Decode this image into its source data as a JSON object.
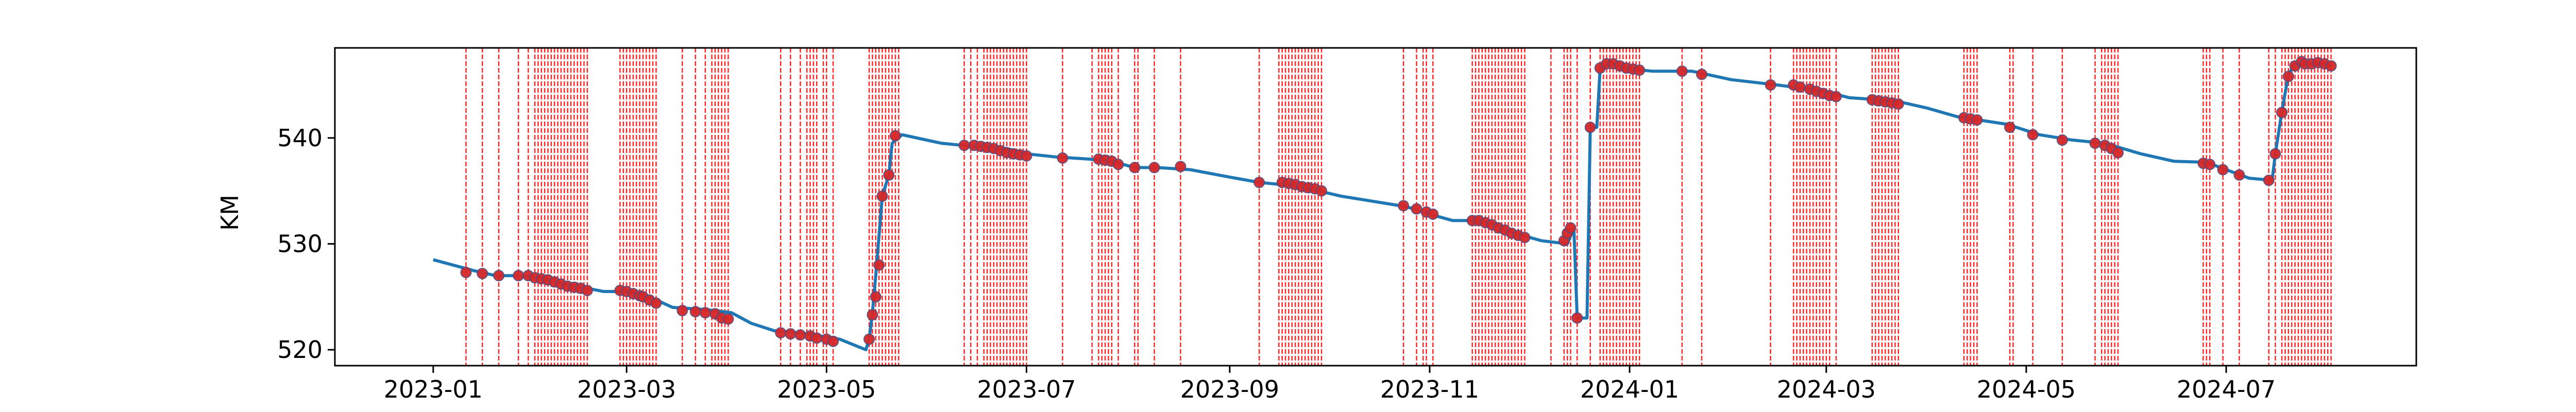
{
  "chart_data": {
    "type": "line",
    "title": "",
    "xlabel": "",
    "ylabel": "KM",
    "xlim": [
      "2022-12-02",
      "2024-08-28"
    ],
    "ylim": [
      518.5,
      548.5
    ],
    "grid": false,
    "x_ticks": [
      "2023-01",
      "2023-03",
      "2023-05",
      "2023-07",
      "2023-09",
      "2023-11",
      "2024-01",
      "2024-03",
      "2024-05",
      "2024-07"
    ],
    "y_ticks": [
      520,
      530,
      540
    ],
    "colors": {
      "line": "#1f77b4",
      "marker": "#d62728",
      "vline": "#ff0000"
    },
    "series": [
      {
        "values": [
          [
            "2023-01-01",
            528.5
          ],
          [
            "2023-01-13",
            527.5
          ],
          [
            "2023-01-20",
            527.0
          ],
          [
            "2023-01-27",
            527.0
          ],
          [
            "2023-02-03",
            526.8
          ],
          [
            "2023-02-10",
            526.2
          ],
          [
            "2023-02-17",
            525.8
          ],
          [
            "2023-02-22",
            525.5
          ],
          [
            "2023-03-01",
            525.5
          ],
          [
            "2023-03-08",
            525.0
          ],
          [
            "2023-03-15",
            524.0
          ],
          [
            "2023-03-25",
            523.8
          ],
          [
            "2023-04-02",
            523.5
          ],
          [
            "2023-04-08",
            522.5
          ],
          [
            "2023-04-15",
            521.8
          ],
          [
            "2023-04-25",
            521.5
          ],
          [
            "2023-05-05",
            521.0
          ],
          [
            "2023-05-13",
            520.0
          ],
          [
            "2023-05-14",
            521.0
          ],
          [
            "2023-05-15",
            523.5
          ],
          [
            "2023-05-16",
            527.0
          ],
          [
            "2023-05-18",
            534.5
          ],
          [
            "2023-05-20",
            536.5
          ],
          [
            "2023-05-21",
            539.5
          ],
          [
            "2023-05-24",
            540.3
          ],
          [
            "2023-06-05",
            539.5
          ],
          [
            "2023-06-15",
            539.2
          ],
          [
            "2023-06-25",
            539.0
          ],
          [
            "2023-07-01",
            538.5
          ],
          [
            "2023-07-10",
            538.2
          ],
          [
            "2023-07-20",
            538.0
          ],
          [
            "2023-07-27",
            537.8
          ],
          [
            "2023-08-03",
            537.2
          ],
          [
            "2023-08-10",
            537.2
          ],
          [
            "2023-08-20",
            537.0
          ],
          [
            "2023-09-01",
            536.3
          ],
          [
            "2023-09-10",
            535.8
          ],
          [
            "2023-09-20",
            535.5
          ],
          [
            "2023-09-28",
            535.0
          ],
          [
            "2023-10-05",
            534.5
          ],
          [
            "2023-10-15",
            534.0
          ],
          [
            "2023-10-25",
            533.5
          ],
          [
            "2023-11-01",
            532.8
          ],
          [
            "2023-11-08",
            532.2
          ],
          [
            "2023-11-15",
            532.2
          ],
          [
            "2023-11-20",
            532.0
          ],
          [
            "2023-11-27",
            531.0
          ],
          [
            "2023-12-05",
            530.3
          ],
          [
            "2023-12-13",
            530.0
          ],
          [
            "2023-12-15",
            531.5
          ],
          [
            "2023-12-16",
            523.0
          ],
          [
            "2023-12-19",
            523.0
          ],
          [
            "2023-12-20",
            541.0
          ],
          [
            "2023-12-22",
            541.0
          ],
          [
            "2023-12-23",
            546.5
          ],
          [
            "2023-12-26",
            547.0
          ],
          [
            "2024-01-01",
            546.5
          ],
          [
            "2024-01-08",
            546.3
          ],
          [
            "2024-01-20",
            546.3
          ],
          [
            "2024-02-01",
            545.5
          ],
          [
            "2024-02-15",
            545.0
          ],
          [
            "2024-02-28",
            544.5
          ],
          [
            "2024-03-08",
            543.8
          ],
          [
            "2024-03-22",
            543.5
          ],
          [
            "2024-04-01",
            542.8
          ],
          [
            "2024-04-10",
            542.0
          ],
          [
            "2024-04-25",
            541.3
          ],
          [
            "2024-05-05",
            540.3
          ],
          [
            "2024-05-15",
            539.8
          ],
          [
            "2024-05-25",
            539.5
          ],
          [
            "2024-06-05",
            538.5
          ],
          [
            "2024-06-15",
            537.8
          ],
          [
            "2024-06-25",
            537.7
          ],
          [
            "2024-07-01",
            537.0
          ],
          [
            "2024-07-08",
            536.2
          ],
          [
            "2024-07-15",
            536.0
          ],
          [
            "2024-07-16",
            538.5
          ],
          [
            "2024-07-18",
            542.5
          ],
          [
            "2024-07-20",
            546.0
          ],
          [
            "2024-07-22",
            547.0
          ],
          [
            "2024-07-28",
            547.0
          ],
          [
            "2024-08-02",
            546.8
          ]
        ]
      }
    ],
    "markers": [
      [
        "2023-01-11",
        527.3
      ],
      [
        "2023-01-16",
        527.2
      ],
      [
        "2023-01-21",
        527.0
      ],
      [
        "2023-01-27",
        527.0
      ],
      [
        "2023-01-30",
        527.0
      ],
      [
        "2023-02-01",
        526.8
      ],
      [
        "2023-02-03",
        526.7
      ],
      [
        "2023-02-05",
        526.6
      ],
      [
        "2023-02-07",
        526.4
      ],
      [
        "2023-02-09",
        526.2
      ],
      [
        "2023-02-11",
        526.0
      ],
      [
        "2023-02-13",
        525.9
      ],
      [
        "2023-02-15",
        525.8
      ],
      [
        "2023-02-17",
        525.6
      ],
      [
        "2023-02-27",
        525.6
      ],
      [
        "2023-03-01",
        525.5
      ],
      [
        "2023-03-03",
        525.3
      ],
      [
        "2023-03-05",
        525.1
      ],
      [
        "2023-03-06",
        525.0
      ],
      [
        "2023-03-08",
        524.7
      ],
      [
        "2023-03-10",
        524.4
      ],
      [
        "2023-03-18",
        523.7
      ],
      [
        "2023-03-22",
        523.6
      ],
      [
        "2023-03-25",
        523.5
      ],
      [
        "2023-03-28",
        523.4
      ],
      [
        "2023-03-30",
        523.0
      ],
      [
        "2023-04-01",
        522.9
      ],
      [
        "2023-04-17",
        521.6
      ],
      [
        "2023-04-20",
        521.5
      ],
      [
        "2023-04-23",
        521.4
      ],
      [
        "2023-04-26",
        521.3
      ],
      [
        "2023-04-28",
        521.1
      ],
      [
        "2023-05-01",
        521.0
      ],
      [
        "2023-05-03",
        520.8
      ],
      [
        "2023-05-14",
        521.0
      ],
      [
        "2023-05-15",
        523.3
      ],
      [
        "2023-05-16",
        525.0
      ],
      [
        "2023-05-17",
        528.0
      ],
      [
        "2023-05-18",
        534.5
      ],
      [
        "2023-05-20",
        536.5
      ],
      [
        "2023-05-22",
        540.2
      ],
      [
        "2023-06-12",
        539.3
      ],
      [
        "2023-06-15",
        539.3
      ],
      [
        "2023-06-17",
        539.2
      ],
      [
        "2023-06-19",
        539.1
      ],
      [
        "2023-06-21",
        539.0
      ],
      [
        "2023-06-23",
        538.8
      ],
      [
        "2023-06-25",
        538.6
      ],
      [
        "2023-06-27",
        538.5
      ],
      [
        "2023-06-29",
        538.4
      ],
      [
        "2023-07-01",
        538.3
      ],
      [
        "2023-07-12",
        538.1
      ],
      [
        "2023-07-23",
        538.0
      ],
      [
        "2023-07-25",
        537.9
      ],
      [
        "2023-07-27",
        537.8
      ],
      [
        "2023-07-29",
        537.5
      ],
      [
        "2023-08-03",
        537.2
      ],
      [
        "2023-08-09",
        537.2
      ],
      [
        "2023-08-17",
        537.3
      ],
      [
        "2023-09-10",
        535.8
      ],
      [
        "2023-09-17",
        535.8
      ],
      [
        "2023-09-19",
        535.7
      ],
      [
        "2023-09-21",
        535.6
      ],
      [
        "2023-09-23",
        535.4
      ],
      [
        "2023-09-25",
        535.3
      ],
      [
        "2023-09-27",
        535.2
      ],
      [
        "2023-09-29",
        535.0
      ],
      [
        "2023-10-24",
        533.6
      ],
      [
        "2023-10-28",
        533.3
      ],
      [
        "2023-10-31",
        533.0
      ],
      [
        "2023-11-02",
        532.8
      ],
      [
        "2023-11-14",
        532.2
      ],
      [
        "2023-11-16",
        532.2
      ],
      [
        "2023-11-18",
        532.0
      ],
      [
        "2023-11-20",
        531.8
      ],
      [
        "2023-11-22",
        531.5
      ],
      [
        "2023-11-24",
        531.3
      ],
      [
        "2023-11-26",
        531.0
      ],
      [
        "2023-11-28",
        530.8
      ],
      [
        "2023-11-30",
        530.6
      ],
      [
        "2023-12-12",
        530.3
      ],
      [
        "2023-12-13",
        531.0
      ],
      [
        "2023-12-14",
        531.5
      ],
      [
        "2023-12-16",
        523.0
      ],
      [
        "2023-12-20",
        541.0
      ],
      [
        "2023-12-23",
        546.6
      ],
      [
        "2023-12-25",
        547.0
      ],
      [
        "2023-12-27",
        547.0
      ],
      [
        "2023-12-29",
        546.8
      ],
      [
        "2023-12-31",
        546.6
      ],
      [
        "2024-01-02",
        546.5
      ],
      [
        "2024-01-04",
        546.4
      ],
      [
        "2024-01-17",
        546.3
      ],
      [
        "2024-01-23",
        546.0
      ],
      [
        "2024-02-13",
        545.0
      ],
      [
        "2024-02-20",
        545.0
      ],
      [
        "2024-02-22",
        544.8
      ],
      [
        "2024-02-25",
        544.6
      ],
      [
        "2024-02-27",
        544.4
      ],
      [
        "2024-02-29",
        544.2
      ],
      [
        "2024-03-02",
        544.0
      ],
      [
        "2024-03-04",
        543.9
      ],
      [
        "2024-03-15",
        543.6
      ],
      [
        "2024-03-17",
        543.5
      ],
      [
        "2024-03-19",
        543.4
      ],
      [
        "2024-03-21",
        543.3
      ],
      [
        "2024-03-23",
        543.2
      ],
      [
        "2024-04-12",
        541.9
      ],
      [
        "2024-04-14",
        541.8
      ],
      [
        "2024-04-16",
        541.7
      ],
      [
        "2024-04-26",
        541.0
      ],
      [
        "2024-05-03",
        540.3
      ],
      [
        "2024-05-12",
        539.8
      ],
      [
        "2024-05-22",
        539.5
      ],
      [
        "2024-05-25",
        539.3
      ],
      [
        "2024-05-27",
        539.0
      ],
      [
        "2024-05-29",
        538.6
      ],
      [
        "2024-06-24",
        537.6
      ],
      [
        "2024-06-26",
        537.5
      ],
      [
        "2024-06-30",
        537.0
      ],
      [
        "2024-07-05",
        536.5
      ],
      [
        "2024-07-14",
        536.0
      ],
      [
        "2024-07-16",
        538.5
      ],
      [
        "2024-07-18",
        542.4
      ],
      [
        "2024-07-20",
        545.8
      ],
      [
        "2024-07-22",
        546.8
      ],
      [
        "2024-07-24",
        547.2
      ],
      [
        "2024-07-25",
        547.0
      ],
      [
        "2024-07-27",
        547.0
      ],
      [
        "2024-07-29",
        547.1
      ],
      [
        "2024-07-31",
        547.0
      ],
      [
        "2024-08-02",
        546.8
      ]
    ],
    "event_dates": [
      "2023-01-11",
      "2023-01-16",
      "2023-01-21",
      "2023-01-27",
      "2023-01-30",
      "2023-02-01",
      "2023-02-02",
      "2023-02-03",
      "2023-02-04",
      "2023-02-05",
      "2023-02-06",
      "2023-02-07",
      "2023-02-08",
      "2023-02-09",
      "2023-02-10",
      "2023-02-11",
      "2023-02-12",
      "2023-02-13",
      "2023-02-14",
      "2023-02-15",
      "2023-02-16",
      "2023-02-17",
      "2023-02-27",
      "2023-02-28",
      "2023-03-01",
      "2023-03-02",
      "2023-03-03",
      "2023-03-04",
      "2023-03-05",
      "2023-03-06",
      "2023-03-07",
      "2023-03-08",
      "2023-03-09",
      "2023-03-10",
      "2023-03-18",
      "2023-03-22",
      "2023-03-25",
      "2023-03-27",
      "2023-03-28",
      "2023-03-29",
      "2023-03-30",
      "2023-03-31",
      "2023-04-01",
      "2023-04-17",
      "2023-04-20",
      "2023-04-23",
      "2023-04-25",
      "2023-04-26",
      "2023-04-27",
      "2023-04-28",
      "2023-04-30",
      "2023-05-01",
      "2023-05-03",
      "2023-05-14",
      "2023-05-15",
      "2023-05-16",
      "2023-05-17",
      "2023-05-18",
      "2023-05-19",
      "2023-05-20",
      "2023-05-21",
      "2023-05-22",
      "2023-05-23",
      "2023-06-12",
      "2023-06-14",
      "2023-06-16",
      "2023-06-18",
      "2023-06-19",
      "2023-06-20",
      "2023-06-21",
      "2023-06-22",
      "2023-06-23",
      "2023-06-24",
      "2023-06-25",
      "2023-06-26",
      "2023-06-27",
      "2023-06-28",
      "2023-06-29",
      "2023-06-30",
      "2023-07-01",
      "2023-07-12",
      "2023-07-21",
      "2023-07-23",
      "2023-07-24",
      "2023-07-25",
      "2023-07-26",
      "2023-07-27",
      "2023-07-29",
      "2023-08-03",
      "2023-08-04",
      "2023-08-09",
      "2023-08-17",
      "2023-09-10",
      "2023-09-16",
      "2023-09-17",
      "2023-09-18",
      "2023-09-19",
      "2023-09-20",
      "2023-09-21",
      "2023-09-22",
      "2023-09-23",
      "2023-09-24",
      "2023-09-25",
      "2023-09-26",
      "2023-09-27",
      "2023-09-28",
      "2023-09-29",
      "2023-10-24",
      "2023-10-28",
      "2023-10-30",
      "2023-10-31",
      "2023-11-02",
      "2023-11-14",
      "2023-11-15",
      "2023-11-16",
      "2023-11-17",
      "2023-11-18",
      "2023-11-19",
      "2023-11-20",
      "2023-11-21",
      "2023-11-22",
      "2023-11-23",
      "2023-11-24",
      "2023-11-25",
      "2023-11-26",
      "2023-11-27",
      "2023-11-28",
      "2023-11-29",
      "2023-11-30",
      "2023-12-08",
      "2023-12-12",
      "2023-12-13",
      "2023-12-14",
      "2023-12-16",
      "2023-12-20",
      "2023-12-23",
      "2023-12-24",
      "2023-12-25",
      "2023-12-26",
      "2023-12-27",
      "2023-12-28",
      "2023-12-29",
      "2023-12-30",
      "2023-12-31",
      "2024-01-01",
      "2024-01-02",
      "2024-01-03",
      "2024-01-04",
      "2024-01-17",
      "2024-01-23",
      "2024-02-13",
      "2024-02-20",
      "2024-02-21",
      "2024-02-22",
      "2024-02-23",
      "2024-02-24",
      "2024-02-25",
      "2024-02-26",
      "2024-02-27",
      "2024-02-28",
      "2024-02-29",
      "2024-03-01",
      "2024-03-02",
      "2024-03-04",
      "2024-03-15",
      "2024-03-16",
      "2024-03-17",
      "2024-03-18",
      "2024-03-19",
      "2024-03-20",
      "2024-03-21",
      "2024-03-22",
      "2024-03-23",
      "2024-04-12",
      "2024-04-13",
      "2024-04-14",
      "2024-04-15",
      "2024-04-16",
      "2024-04-26",
      "2024-04-27",
      "2024-05-03",
      "2024-05-12",
      "2024-05-22",
      "2024-05-24",
      "2024-05-25",
      "2024-05-26",
      "2024-05-27",
      "2024-05-28",
      "2024-05-29",
      "2024-06-24",
      "2024-06-25",
      "2024-06-26",
      "2024-06-30",
      "2024-07-05",
      "2024-07-14",
      "2024-07-16",
      "2024-07-18",
      "2024-07-19",
      "2024-07-20",
      "2024-07-21",
      "2024-07-22",
      "2024-07-23",
      "2024-07-24",
      "2024-07-25",
      "2024-07-26",
      "2024-07-27",
      "2024-07-28",
      "2024-07-29",
      "2024-07-30",
      "2024-07-31",
      "2024-08-01",
      "2024-08-02"
    ]
  }
}
